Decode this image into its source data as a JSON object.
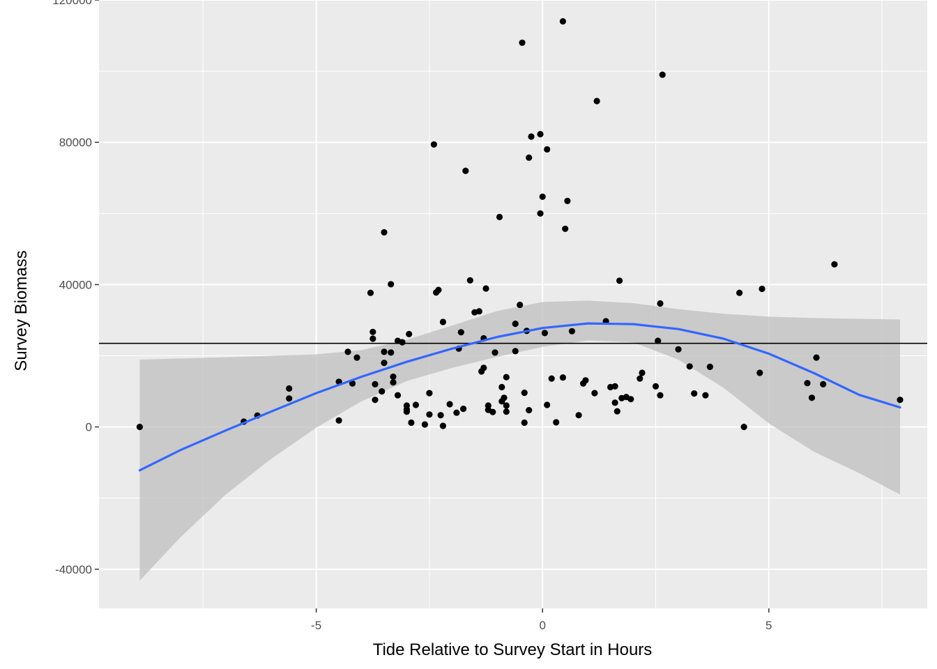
{
  "chart_data": {
    "type": "scatter",
    "xlabel": "Tide Relative to Survey Start in Hours",
    "ylabel": "Survey Biomass",
    "xlim": [
      -9.8,
      8.5
    ],
    "ylim": [
      -51000,
      120000
    ],
    "x_ticks": [
      {
        "value": -5,
        "label": "-5"
      },
      {
        "value": 0,
        "label": "0"
      },
      {
        "value": 5,
        "label": "5"
      }
    ],
    "y_ticks": [
      {
        "value": -40000,
        "label": "-40000"
      },
      {
        "value": 0,
        "label": "0"
      },
      {
        "value": 40000,
        "label": "40000"
      },
      {
        "value": 80000,
        "label": "80000"
      },
      {
        "value": 120000,
        "label": "120000"
      }
    ],
    "x_minor": [
      -7.5,
      -2.5,
      2.5,
      7.5
    ],
    "y_minor": [
      -20000,
      20000,
      60000,
      100000
    ],
    "grid": true,
    "background": "#ebebeb",
    "points_color": "#000000",
    "smooth_color": "#3366ff",
    "band_color": "#bdbdbd",
    "hline": {
      "y": 23500,
      "color": "#000000"
    },
    "points": [
      [
        -8.9,
        0
      ],
      [
        -6.6,
        1500
      ],
      [
        -6.3,
        3200
      ],
      [
        -5.6,
        10800
      ],
      [
        -5.6,
        8000
      ],
      [
        -4.5,
        12700
      ],
      [
        -4.5,
        1800
      ],
      [
        -4.3,
        21100
      ],
      [
        -4.2,
        12200
      ],
      [
        -4.1,
        19500
      ],
      [
        -3.8,
        37700
      ],
      [
        -3.75,
        26700
      ],
      [
        -3.75,
        24800
      ],
      [
        -3.7,
        12000
      ],
      [
        -3.7,
        7600
      ],
      [
        -3.55,
        10000
      ],
      [
        -3.5,
        54700
      ],
      [
        -3.5,
        21100
      ],
      [
        -3.5,
        18000
      ],
      [
        -3.35,
        40100
      ],
      [
        -3.35,
        20900
      ],
      [
        -3.3,
        14100
      ],
      [
        -3.3,
        12500
      ],
      [
        -3.2,
        8900
      ],
      [
        -3.2,
        24200
      ],
      [
        -3.1,
        23800
      ],
      [
        -3.0,
        4900
      ],
      [
        -3.0,
        6000
      ],
      [
        -3.0,
        4300
      ],
      [
        -2.95,
        26100
      ],
      [
        -2.9,
        1200
      ],
      [
        -2.8,
        6200
      ],
      [
        -2.6,
        700
      ],
      [
        -2.5,
        9500
      ],
      [
        -2.5,
        3500
      ],
      [
        -2.4,
        79400
      ],
      [
        -2.35,
        37800
      ],
      [
        -2.3,
        38500
      ],
      [
        -2.25,
        3300
      ],
      [
        -2.2,
        300
      ],
      [
        -2.2,
        29500
      ],
      [
        -2.05,
        6400
      ],
      [
        -1.9,
        4000
      ],
      [
        -1.85,
        22000
      ],
      [
        -1.8,
        26600
      ],
      [
        -1.75,
        5100
      ],
      [
        -1.7,
        72000
      ],
      [
        -1.6,
        41200
      ],
      [
        -1.5,
        32200
      ],
      [
        -1.4,
        32500
      ],
      [
        -1.35,
        15600
      ],
      [
        -1.3,
        16600
      ],
      [
        -1.3,
        24900
      ],
      [
        -1.25,
        38900
      ],
      [
        -1.2,
        6000
      ],
      [
        -1.2,
        4800
      ],
      [
        -1.1,
        4200
      ],
      [
        -1.05,
        20900
      ],
      [
        -0.95,
        59000
      ],
      [
        -0.9,
        11200
      ],
      [
        -0.9,
        7200
      ],
      [
        -0.85,
        8200
      ],
      [
        -0.8,
        14000
      ],
      [
        -0.8,
        6000
      ],
      [
        -0.8,
        4300
      ],
      [
        -0.6,
        29000
      ],
      [
        -0.6,
        21300
      ],
      [
        -0.5,
        34300
      ],
      [
        -0.45,
        108000
      ],
      [
        -0.4,
        1200
      ],
      [
        -0.4,
        9600
      ],
      [
        -0.35,
        27000
      ],
      [
        -0.3,
        4700
      ],
      [
        -0.3,
        75700
      ],
      [
        -0.25,
        81600
      ],
      [
        -0.05,
        82300
      ],
      [
        -0.05,
        60000
      ],
      [
        0.0,
        64700
      ],
      [
        0.05,
        26400
      ],
      [
        0.1,
        78000
      ],
      [
        0.1,
        6200
      ],
      [
        0.2,
        13600
      ],
      [
        0.3,
        1300
      ],
      [
        0.45,
        114000
      ],
      [
        0.45,
        13900
      ],
      [
        0.5,
        55700
      ],
      [
        0.55,
        63500
      ],
      [
        0.65,
        26900
      ],
      [
        0.8,
        3300
      ],
      [
        0.9,
        12200
      ],
      [
        0.95,
        13100
      ],
      [
        1.15,
        9500
      ],
      [
        1.2,
        91600
      ],
      [
        1.4,
        29700
      ],
      [
        1.5,
        11200
      ],
      [
        1.6,
        6800
      ],
      [
        1.6,
        11400
      ],
      [
        1.65,
        4400
      ],
      [
        1.7,
        41100
      ],
      [
        1.75,
        8100
      ],
      [
        1.85,
        8400
      ],
      [
        1.95,
        7800
      ],
      [
        2.15,
        13600
      ],
      [
        2.2,
        15200
      ],
      [
        2.5,
        11400
      ],
      [
        2.55,
        24200
      ],
      [
        2.6,
        8900
      ],
      [
        2.6,
        34700
      ],
      [
        2.65,
        99000
      ],
      [
        3.0,
        21800
      ],
      [
        3.25,
        17000
      ],
      [
        3.35,
        9400
      ],
      [
        3.6,
        8900
      ],
      [
        3.7,
        16900
      ],
      [
        4.35,
        37700
      ],
      [
        4.45,
        0
      ],
      [
        4.8,
        15200
      ],
      [
        4.85,
        38800
      ],
      [
        5.85,
        12300
      ],
      [
        5.95,
        8200
      ],
      [
        6.05,
        19500
      ],
      [
        6.2,
        12000
      ],
      [
        6.45,
        45700
      ],
      [
        7.9,
        7600
      ]
    ],
    "smooth": [
      [
        -8.9,
        -12200
      ],
      [
        -8,
        -6500
      ],
      [
        -7,
        -1000
      ],
      [
        -6,
        4300
      ],
      [
        -5,
        9500
      ],
      [
        -4,
        14100
      ],
      [
        -3,
        18300
      ],
      [
        -2,
        22000
      ],
      [
        -1,
        25300
      ],
      [
        0,
        27800
      ],
      [
        1,
        29100
      ],
      [
        2,
        28900
      ],
      [
        3,
        27500
      ],
      [
        4,
        24800
      ],
      [
        5,
        20600
      ],
      [
        6,
        15100
      ],
      [
        7,
        9000
      ],
      [
        7.9,
        5500
      ]
    ],
    "band_upper": [
      [
        -8.9,
        18900
      ],
      [
        -7,
        19600
      ],
      [
        -6,
        20000
      ],
      [
        -5,
        20400
      ],
      [
        -4,
        21600
      ],
      [
        -3,
        24500
      ],
      [
        -2,
        28500
      ],
      [
        -1,
        32600
      ],
      [
        0,
        35100
      ],
      [
        1,
        35500
      ],
      [
        2,
        34800
      ],
      [
        3,
        33100
      ],
      [
        4,
        31800
      ],
      [
        5,
        31000
      ],
      [
        6,
        30600
      ],
      [
        7.9,
        30200
      ]
    ],
    "band_lower": [
      [
        -8.9,
        -43200
      ],
      [
        -8,
        -31000
      ],
      [
        -7,
        -19000
      ],
      [
        -6,
        -9000
      ],
      [
        -5,
        -200
      ],
      [
        -4,
        7200
      ],
      [
        -3,
        12900
      ],
      [
        -2,
        16600
      ],
      [
        -1,
        19700
      ],
      [
        0,
        22500
      ],
      [
        1,
        24300
      ],
      [
        2,
        23800
      ],
      [
        3,
        18900
      ],
      [
        4,
        11000
      ],
      [
        5,
        1000
      ],
      [
        6,
        -7000
      ],
      [
        7,
        -13000
      ],
      [
        7.9,
        -19000
      ]
    ]
  }
}
